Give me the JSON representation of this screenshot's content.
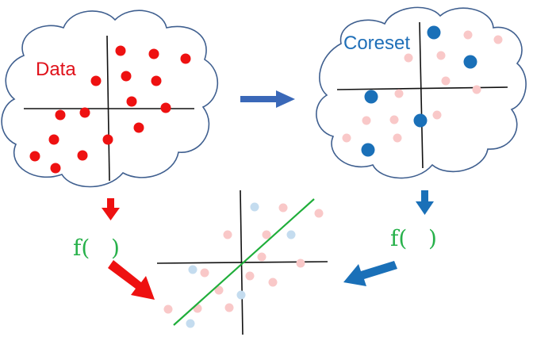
{
  "labels": {
    "data": "Data",
    "coreset": "Coreset",
    "f_left": "f(   )",
    "f_right": "f(   )"
  },
  "colors": {
    "data_point": "#ee1111",
    "coreset_point": "#1a70b8",
    "faded_red": "#f9c8c8",
    "faded_blue": "#c4dcef",
    "cloud_stroke": "#3f5f8f",
    "axis": "#111111",
    "fit_line": "#1fae3a",
    "arrow_red": "#ee1111",
    "arrow_blue": "#3a68b8",
    "arrow_blue_dark": "#1a70b8",
    "label_green": "#27b14a"
  },
  "icons": [
    "cloud-data-icon",
    "cloud-coreset-icon",
    "arrow-right-icon",
    "arrow-down-red-icon",
    "arrow-down-blue-icon",
    "arrow-diagonal-red-icon",
    "arrow-diagonal-blue-icon"
  ]
}
